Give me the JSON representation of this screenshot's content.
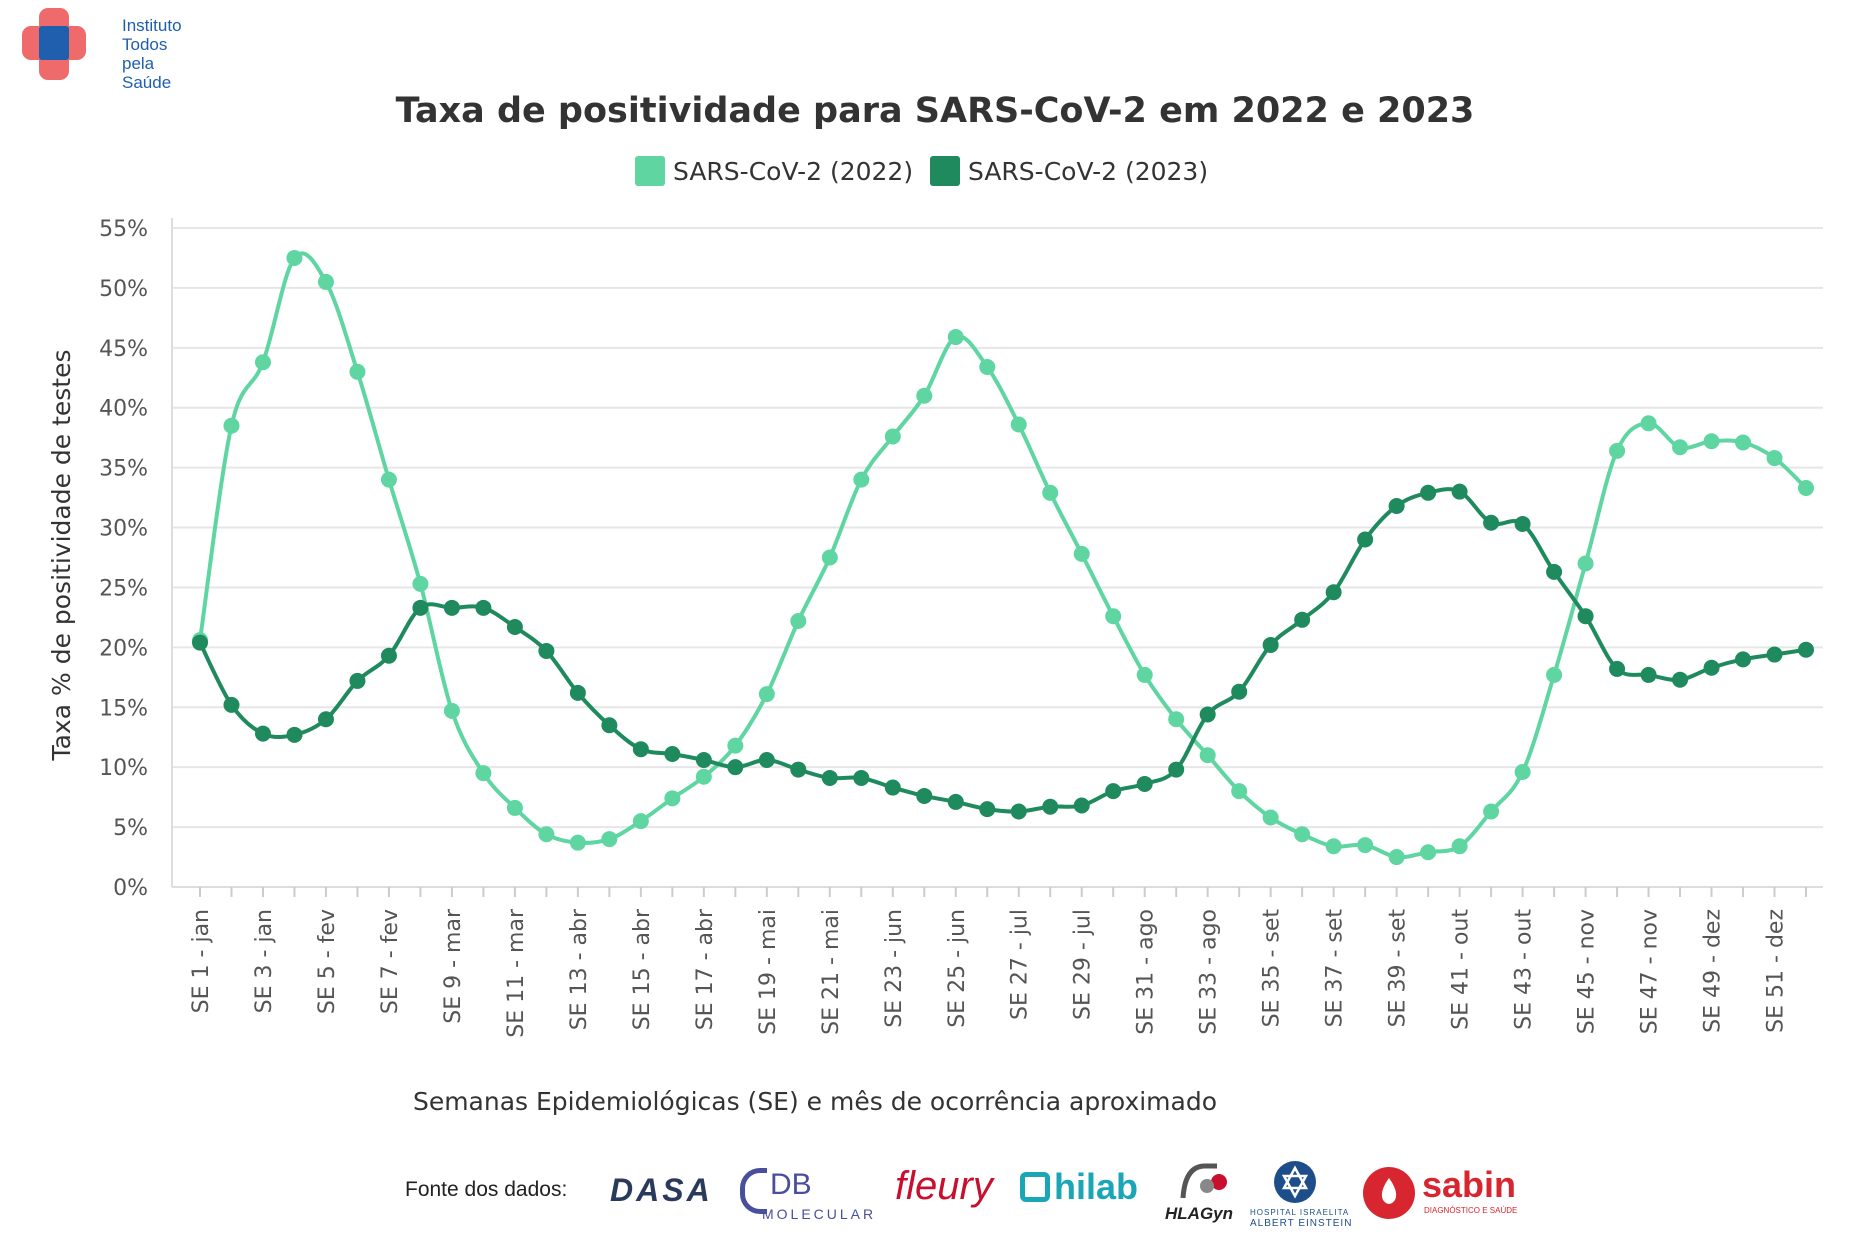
{
  "logo": {
    "lines": [
      "Instituto",
      "Todos",
      "pela",
      "Saúde"
    ],
    "red": "#ef6b6b",
    "blue": "#1f5fae"
  },
  "chart_data": {
    "type": "line",
    "title": "Taxa de positividade para SARS-CoV-2 em 2022 e 2023",
    "xlabel": "Semanas Epidemiológicas (SE) e mês de ocorrência aproximado",
    "ylabel": "Taxa % de positividade de testes",
    "ylim": [
      0,
      55
    ],
    "y_ticks": [
      "0%",
      "5%",
      "10%",
      "15%",
      "20%",
      "25%",
      "30%",
      "35%",
      "40%",
      "45%",
      "50%",
      "55%"
    ],
    "x_tick_labels": [
      "SE 1 - jan",
      "SE 3 - jan",
      "SE 5 - fev",
      "SE 7 - fev",
      "SE 9 - mar",
      "SE 11 - mar",
      "SE 13 - abr",
      "SE 15 - abr",
      "SE 17 - abr",
      "SE 19 - mai",
      "SE 21 - mai",
      "SE 23 - jun",
      "SE 25 - jun",
      "SE 27 - jul",
      "SE 29 - jul",
      "SE 31 - ago",
      "SE 33 - ago",
      "SE 35 - set",
      "SE 37 - set",
      "SE 39 - set",
      "SE 41 - out",
      "SE 43 - out",
      "SE 45 - nov",
      "SE 47 - nov",
      "SE 49 - dez",
      "SE 51 - dez"
    ],
    "x": [
      1,
      2,
      3,
      4,
      5,
      6,
      7,
      8,
      9,
      10,
      11,
      12,
      13,
      14,
      15,
      16,
      17,
      18,
      19,
      20,
      21,
      22,
      23,
      24,
      25,
      26,
      27,
      28,
      29,
      30,
      31,
      32,
      33,
      34,
      35,
      36,
      37,
      38,
      39,
      40,
      41,
      42,
      43,
      44,
      45,
      46,
      47,
      48,
      49,
      50,
      51,
      52
    ],
    "legend_position": "top-center",
    "grid": true,
    "series": [
      {
        "name": "SARS-CoV-2 (2022)",
        "color": "#5fd6a2",
        "values": [
          20.6,
          38.5,
          43.8,
          52.5,
          50.5,
          43.0,
          34.0,
          25.3,
          14.7,
          9.5,
          6.6,
          4.4,
          3.7,
          4.0,
          5.5,
          7.4,
          9.2,
          11.8,
          16.1,
          22.2,
          27.5,
          34.0,
          37.6,
          41.0,
          45.9,
          43.4,
          38.6,
          32.9,
          27.8,
          22.6,
          17.7,
          14.0,
          11.0,
          8.0,
          5.8,
          4.4,
          3.4,
          3.5,
          2.5,
          2.9,
          3.4,
          6.3,
          9.6,
          17.7,
          27.0,
          36.4,
          38.7,
          36.7,
          37.2,
          37.1,
          35.8,
          33.3
        ]
      },
      {
        "name": "SARS-CoV-2 (2023)",
        "color": "#1f8a5e",
        "values": [
          20.4,
          15.2,
          12.8,
          12.7,
          14.0,
          17.2,
          19.3,
          23.3,
          23.3,
          23.3,
          21.7,
          19.7,
          16.2,
          13.5,
          11.5,
          11.1,
          10.6,
          10.0,
          10.6,
          9.8,
          9.1,
          9.1,
          8.3,
          7.6,
          7.1,
          6.5,
          6.3,
          6.7,
          6.8,
          8.0,
          8.6,
          9.8,
          14.4,
          16.3,
          20.2,
          22.3,
          24.6,
          29.0,
          31.8,
          32.9,
          33.0,
          30.4,
          30.3,
          26.3,
          22.6,
          18.2,
          17.7,
          17.3,
          18.3,
          19.0,
          19.4,
          19.8
        ]
      }
    ]
  },
  "footer": {
    "fonte": "Fonte dos dados:",
    "sponsors": [
      {
        "name": "dasa",
        "text": "DASA",
        "color": "#2a3a5c"
      },
      {
        "name": "db-molecular",
        "text": "DB",
        "sub": "MOLECULAR",
        "color": "#4a4f9c"
      },
      {
        "name": "fleury",
        "text": "fleury",
        "color": "#c8102e"
      },
      {
        "name": "hilab",
        "text": "hilab",
        "color": "#1aa6b7"
      },
      {
        "name": "hlagyn",
        "text": "HLAGyn",
        "color": "#222222"
      },
      {
        "name": "einstein",
        "sub": "HOSPITAL ISRAELITA",
        "sub2": "ALBERT EINSTEIN",
        "color": "#1d4e89"
      },
      {
        "name": "sabin",
        "text": "sabin",
        "sub": "DIAGNÓSTICO E SAÚDE",
        "color": "#d7262f"
      }
    ]
  }
}
